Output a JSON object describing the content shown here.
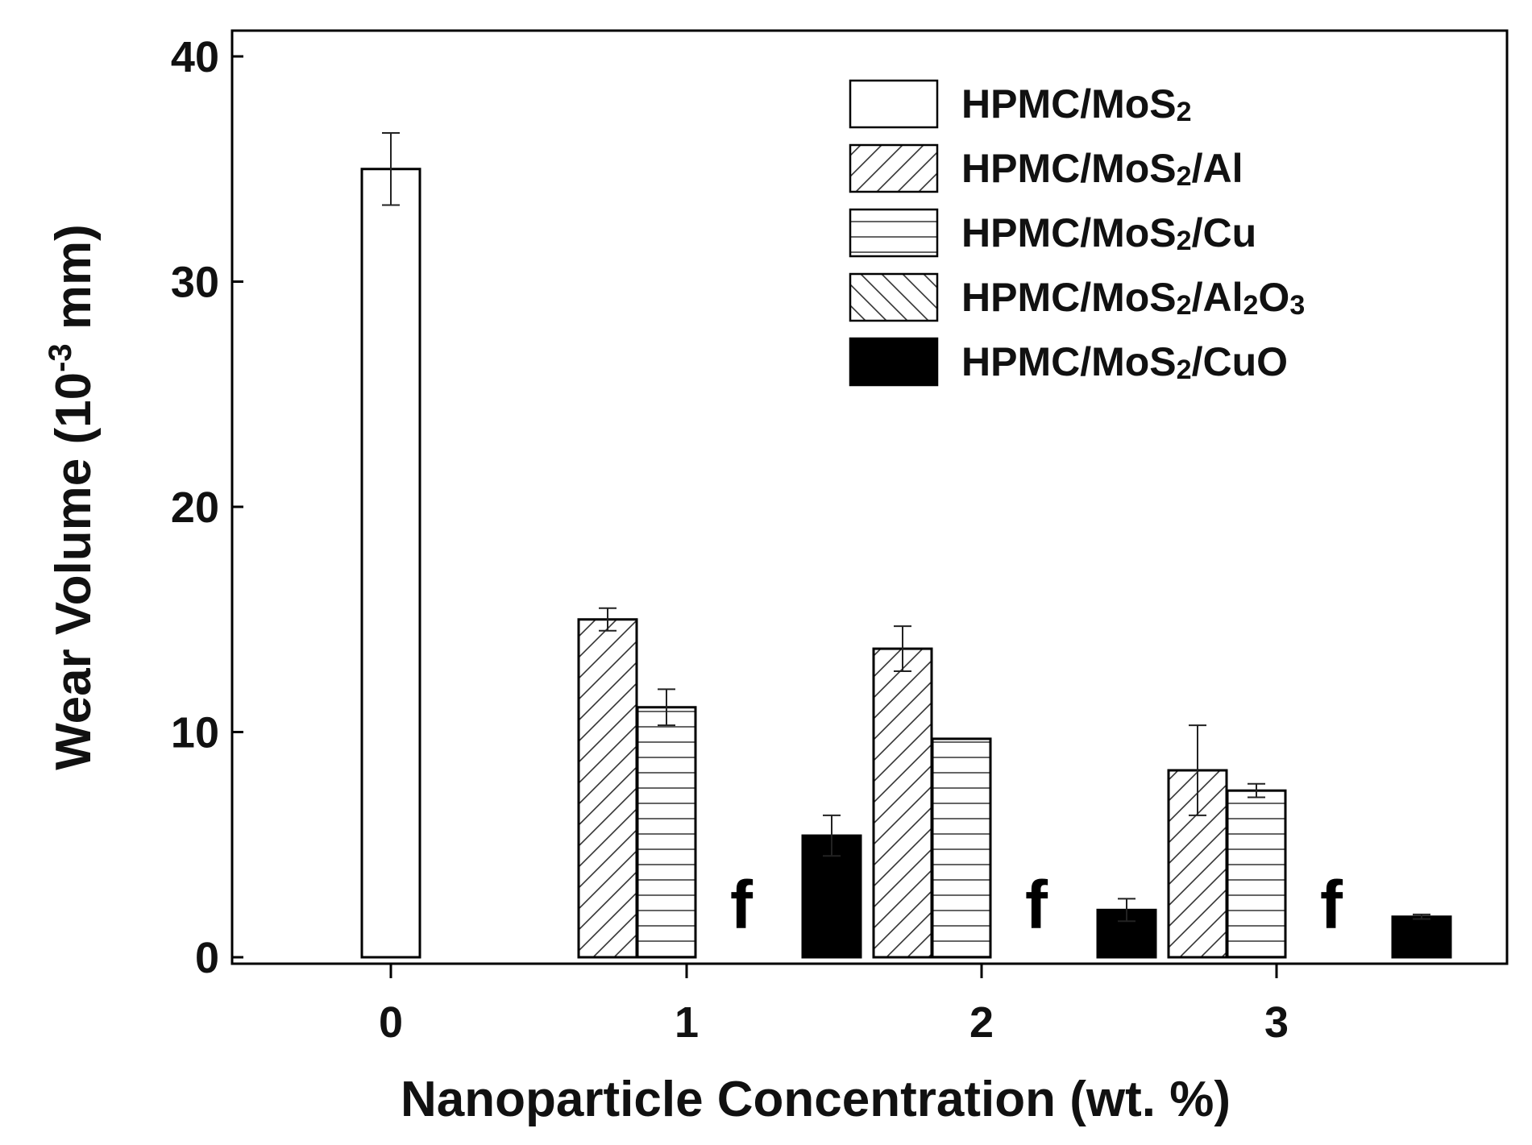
{
  "chart_data": {
    "type": "bar",
    "xlabel": "Nanoparticle Concentration (wt. %)",
    "ylabel_parts": {
      "main": "Wear Volume (10",
      "sup": "-3",
      "end": " mm)"
    },
    "categories": [
      "0",
      "1",
      "2",
      "3"
    ],
    "ylim": [
      0,
      40
    ],
    "yticks": [
      "0",
      "10",
      "20",
      "30",
      "40"
    ],
    "grid": false,
    "legend_position": "top-right",
    "series": [
      {
        "key": "mos2",
        "pattern": "none",
        "fill": "#ffffff",
        "legend": [
          {
            "t": "HPMC/MoS",
            "s": false
          },
          {
            "t": "2",
            "s": true
          }
        ],
        "values": [
          35.0,
          null,
          null,
          null
        ],
        "errors": [
          1.6,
          null,
          null,
          null
        ]
      },
      {
        "key": "al",
        "pattern": "diag-up",
        "fill": "#ffffff",
        "legend": [
          {
            "t": "HPMC/MoS",
            "s": false
          },
          {
            "t": "2",
            "s": true
          },
          {
            "t": "/Al",
            "s": false
          }
        ],
        "values": [
          null,
          15.0,
          13.7,
          8.3
        ],
        "errors": [
          null,
          0.5,
          1.0,
          2.0
        ]
      },
      {
        "key": "cu",
        "pattern": "horizontal",
        "fill": "#ffffff",
        "legend": [
          {
            "t": "HPMC/MoS",
            "s": false
          },
          {
            "t": "2",
            "s": true
          },
          {
            "t": "/Cu",
            "s": false
          }
        ],
        "values": [
          null,
          11.1,
          9.7,
          7.4
        ],
        "errors": [
          null,
          0.8,
          0,
          0.3
        ]
      },
      {
        "key": "al2o3",
        "pattern": "diag-down",
        "fill": "#ffffff",
        "legend": [
          {
            "t": "HPMC/MoS",
            "s": false
          },
          {
            "t": "2",
            "s": true
          },
          {
            "t": "/Al",
            "s": false
          },
          {
            "t": "2",
            "s": true
          },
          {
            "t": "O",
            "s": false
          },
          {
            "t": "3",
            "s": true
          }
        ],
        "values": [
          null,
          null,
          null,
          null
        ],
        "errors": [
          null,
          null,
          null,
          null
        ]
      },
      {
        "key": "cuo",
        "pattern": "solid",
        "fill": "#000000",
        "legend": [
          {
            "t": "HPMC/MoS",
            "s": false
          },
          {
            "t": "2",
            "s": true
          },
          {
            "t": "/CuO",
            "s": false
          }
        ],
        "values": [
          null,
          5.4,
          2.1,
          1.8
        ],
        "errors": [
          null,
          0.9,
          0.5,
          0.1
        ]
      }
    ],
    "annotations": [
      {
        "text": "f",
        "category": "1"
      },
      {
        "text": "f",
        "category": "2"
      },
      {
        "text": "f",
        "category": "3"
      }
    ]
  }
}
